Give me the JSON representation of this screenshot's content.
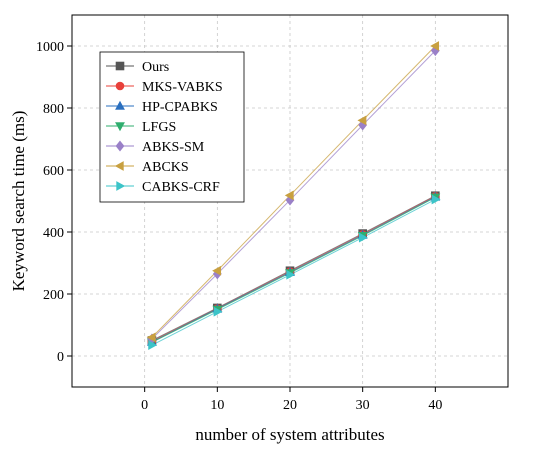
{
  "chart_data": {
    "type": "line",
    "xlabel": "number of system attributes",
    "ylabel": "Keyword search time (ms)",
    "xlim": [
      -10,
      50
    ],
    "ylim": [
      -100,
      1100
    ],
    "xticks": [
      0,
      10,
      20,
      30,
      40
    ],
    "yticks": [
      0,
      200,
      400,
      600,
      800,
      1000
    ],
    "grid": true,
    "legend_position": "top-left",
    "x": [
      1,
      10,
      20,
      30,
      40
    ],
    "series": [
      {
        "name": "Ours",
        "values": [
          50,
          155,
          275,
          395,
          517
        ],
        "color": "#555555",
        "marker": "square"
      },
      {
        "name": "MKS-VABKS",
        "values": [
          47,
          153,
          272,
          392,
          515
        ],
        "color": "#e8403a",
        "marker": "circle"
      },
      {
        "name": "HP-CPABKS",
        "values": [
          45,
          152,
          270,
          390,
          513
        ],
        "color": "#2a6fbf",
        "marker": "triangle-up"
      },
      {
        "name": "LFGS",
        "values": [
          44,
          150,
          268,
          388,
          512
        ],
        "color": "#2fae6e",
        "marker": "triangle-down"
      },
      {
        "name": "ABKS-SM",
        "values": [
          55,
          265,
          503,
          745,
          985
        ],
        "color": "#9a80c8",
        "marker": "diamond"
      },
      {
        "name": "ABCKS",
        "values": [
          60,
          275,
          518,
          760,
          1000
        ],
        "color": "#c8a040",
        "marker": "triangle-left"
      },
      {
        "name": "CABKS-CRF",
        "values": [
          35,
          143,
          262,
          382,
          505
        ],
        "color": "#3cc4c8",
        "marker": "triangle-right"
      }
    ]
  }
}
